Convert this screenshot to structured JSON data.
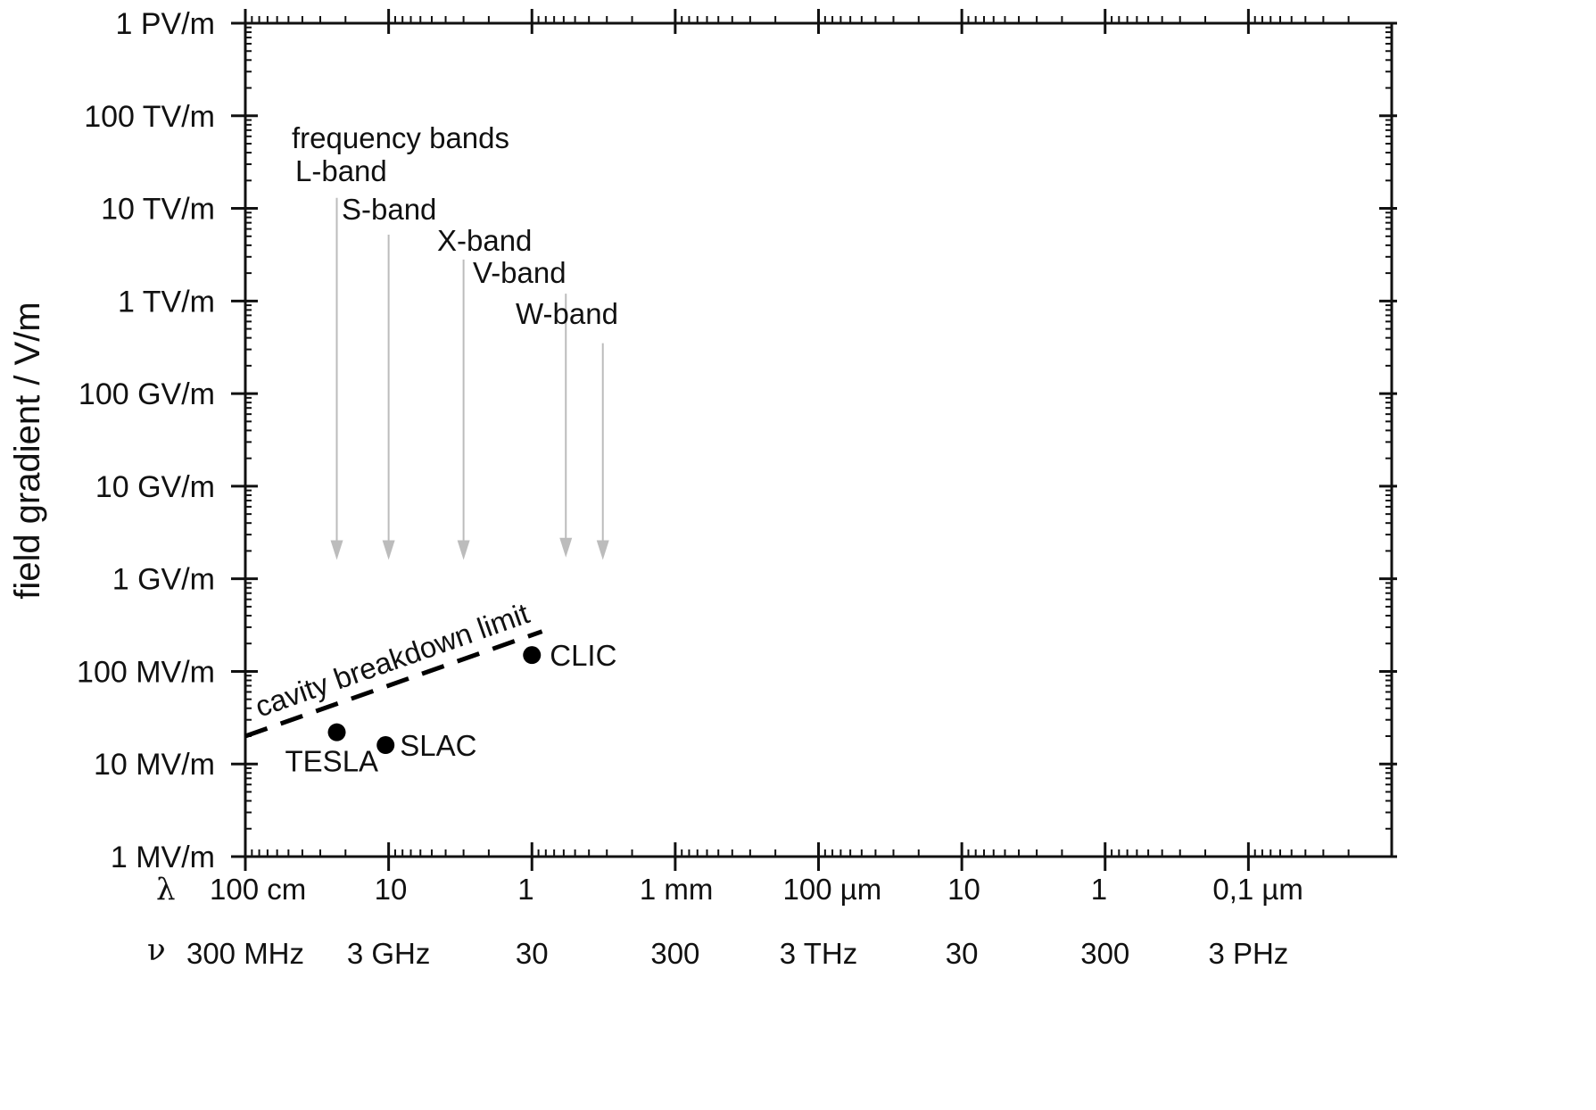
{
  "chart_data": {
    "type": "scatter",
    "title": "",
    "xlabel": "",
    "ylabel": "field gradient / V/m",
    "y_scale": "log",
    "ylim": [
      1000000,
      1000000000000000
    ],
    "x_scale": "log",
    "x_quantity": "wavelength (m)",
    "xlim": [
      1,
      1e-08
    ],
    "grid": false,
    "legend": "none",
    "y_ticks": [
      {
        "value": 1000000000000000.0,
        "label": "1 PV/m"
      },
      {
        "value": 100000000000000.0,
        "label": "100 TV/m"
      },
      {
        "value": 10000000000000.0,
        "label": "10 TV/m"
      },
      {
        "value": 1000000000000.0,
        "label": "1 TV/m"
      },
      {
        "value": 100000000000.0,
        "label": "100 GV/m"
      },
      {
        "value": 10000000000.0,
        "label": "10 GV/m"
      },
      {
        "value": 1000000000.0,
        "label": "1 GV/m"
      },
      {
        "value": 100000000.0,
        "label": "100 MV/m"
      },
      {
        "value": 10000000.0,
        "label": "10 MV/m"
      },
      {
        "value": 1000000.0,
        "label": "1 MV/m"
      }
    ],
    "wavelength_row_symbol": "λ",
    "wavelength_ticks": [
      {
        "value": 1,
        "label": "100 cm"
      },
      {
        "value": 0.1,
        "label": "10"
      },
      {
        "value": 0.01,
        "label": "1"
      },
      {
        "value": 0.001,
        "label": "1 mm"
      },
      {
        "value": 0.0001,
        "label": "100 µm"
      },
      {
        "value": 1e-05,
        "label": "10"
      },
      {
        "value": 1e-06,
        "label": "1"
      },
      {
        "value": 1e-07,
        "label": "0,1 µm"
      }
    ],
    "frequency_row_symbol": "ν",
    "frequency_ticks": [
      {
        "wavelength": 1,
        "label": "300 MHz"
      },
      {
        "wavelength": 0.1,
        "label": "3 GHz"
      },
      {
        "wavelength": 0.01,
        "label": "30"
      },
      {
        "wavelength": 0.001,
        "label": "300"
      },
      {
        "wavelength": 0.0001,
        "label": "3 THz"
      },
      {
        "wavelength": 1e-05,
        "label": "30"
      },
      {
        "wavelength": 1e-06,
        "label": "300"
      },
      {
        "wavelength": 1e-07,
        "label": "3 PHz"
      }
    ],
    "points": [
      {
        "label": "TESLA",
        "x": 0.23,
        "y": 22000000
      },
      {
        "label": "SLAC",
        "x": 0.105,
        "y": 16000000
      },
      {
        "label": "CLIC",
        "x": 0.01,
        "y": 150000000
      }
    ],
    "breakdown_limit": {
      "label": "cavity breakdown limit",
      "x": [
        1,
        0.0085
      ],
      "y": [
        20000000,
        270000000
      ]
    },
    "frequency_bands": {
      "title": "frequency bands",
      "y_start_label_row": 1,
      "bands": [
        {
          "label": "L-band",
          "x": 0.23,
          "y_top": 13000000000000,
          "y_bottom": 1600000000
        },
        {
          "label": "S-band",
          "x": 0.1,
          "y_top": 5200000000000,
          "y_bottom": 1600000000
        },
        {
          "label": "X-band",
          "x": 0.03,
          "y_top": 2800000000000,
          "y_bottom": 1600000000
        },
        {
          "label": "V-band",
          "x": 0.0058,
          "y_top": 1200000000000,
          "y_bottom": 1700000000
        },
        {
          "label": "W-band",
          "x": 0.0032,
          "y_top": 350000000000,
          "y_bottom": 1600000000
        }
      ]
    },
    "colors": {
      "axis": "#111111",
      "arrow": "#bcbcbc",
      "marker": "#000000"
    }
  }
}
